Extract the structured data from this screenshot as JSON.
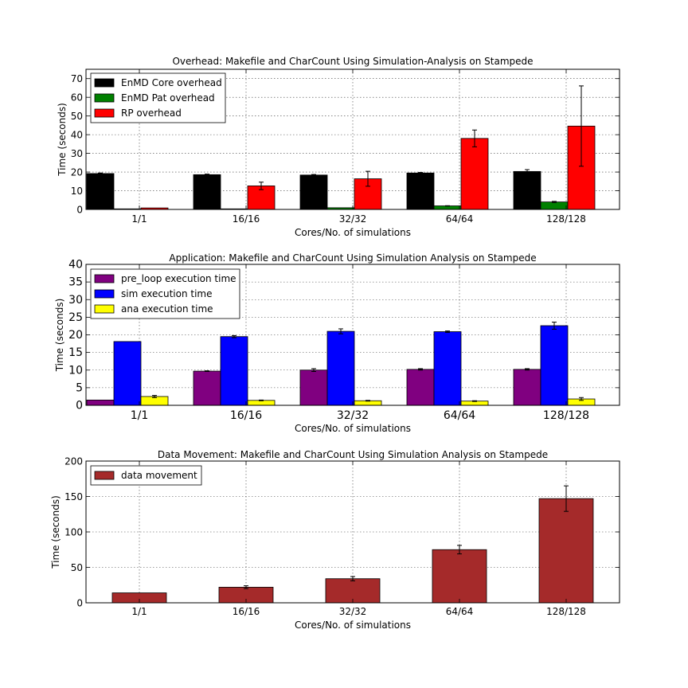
{
  "chart_data": [
    {
      "type": "bar",
      "title": "Overhead: Makefile and CharCount Using Simulation-Analysis on Stampede",
      "xlabel": "Cores/No. of simulations",
      "ylabel": "Time (seconds)",
      "categories": [
        "1/1",
        "16/16",
        "32/32",
        "64/64",
        "128/128"
      ],
      "ylim": [
        0,
        75
      ],
      "yticks": [
        0,
        10,
        20,
        30,
        40,
        50,
        60,
        70
      ],
      "grid": true,
      "legend_position": "top-left",
      "series": [
        {
          "name": "EnMD Core overhead",
          "color": "#000000",
          "values": [
            19.2,
            18.6,
            18.4,
            19.5,
            20.3
          ],
          "errors": [
            0.3,
            0.3,
            0.3,
            0.3,
            1.0
          ]
        },
        {
          "name": "EnMD Pat overhead",
          "color": "#008000",
          "values": [
            0.3,
            0.3,
            0.9,
            1.9,
            4.0
          ],
          "errors": [
            0,
            0,
            0,
            0.1,
            0.3
          ]
        },
        {
          "name": "RP overhead",
          "color": "#ff0000",
          "values": [
            0.8,
            12.6,
            16.4,
            38.0,
            44.6
          ],
          "errors": [
            0,
            2.0,
            4.0,
            4.5,
            21.5
          ]
        }
      ]
    },
    {
      "type": "bar",
      "title": "Application: Makefile and CharCount Using Simulation Analysis on Stampede",
      "xlabel": "Cores/No. of simulations",
      "ylabel": "Time (seconds)",
      "categories": [
        "1/1",
        "16/16",
        "32/32",
        "64/64",
        "128/128"
      ],
      "ylim": [
        0,
        40
      ],
      "yticks": [
        0,
        5,
        10,
        15,
        20,
        25,
        30,
        35,
        40
      ],
      "grid": true,
      "legend_position": "top-left",
      "series": [
        {
          "name": "pre_loop execution time",
          "color": "#800080",
          "values": [
            1.5,
            9.7,
            10.0,
            10.2,
            10.2
          ],
          "errors": [
            0,
            0.1,
            0.4,
            0.2,
            0.2
          ]
        },
        {
          "name": "sim execution time",
          "color": "#0000ff",
          "values": [
            18.1,
            19.5,
            21.0,
            20.9,
            22.6
          ],
          "errors": [
            0,
            0.3,
            0.7,
            0.2,
            1.0
          ]
        },
        {
          "name": "ana execution time",
          "color": "#ffff00",
          "values": [
            2.5,
            1.4,
            1.3,
            1.2,
            1.8
          ],
          "errors": [
            0.3,
            0.1,
            0.1,
            0.1,
            0.4
          ]
        }
      ]
    },
    {
      "type": "bar",
      "title": "Data Movement: Makefile and CharCount Using Simulation Analysis on Stampede",
      "xlabel": "Cores/No. of simulations",
      "ylabel": "Time (seconds)",
      "categories": [
        "1/1",
        "16/16",
        "32/32",
        "64/64",
        "128/128"
      ],
      "ylim": [
        0,
        200
      ],
      "yticks": [
        0,
        50,
        100,
        150,
        200
      ],
      "grid": true,
      "legend_position": "top-left",
      "series": [
        {
          "name": "data movement",
          "color": "#a52a2a",
          "values": [
            14,
            22,
            34,
            75,
            147
          ],
          "errors": [
            0,
            2,
            3,
            6,
            18
          ]
        }
      ]
    }
  ]
}
